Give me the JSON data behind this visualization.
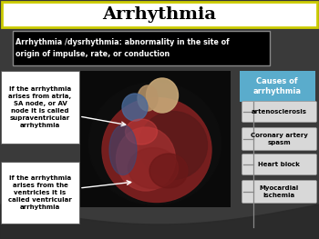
{
  "title": "Arrhythmia",
  "title_bg": "#FFFFFF",
  "title_fontsize": 14,
  "bg_color": "#3a3a3a",
  "definition_text": "Arrhythmia /dysrhythmia: abnormality in the site of\norigin of impulse, rate, or conduction",
  "definition_bg": "#000000",
  "definition_text_color": "#FFFFFF",
  "causes_header": "Causes of\narrhythmia",
  "causes_header_bg": "#5aaccc",
  "causes_header_text_color": "#FFFFFF",
  "causes": [
    "artenosclerosis",
    "Coronary artery\nspasm",
    "Heart block",
    "Myocardial\nischemia"
  ],
  "cause_box_bg": "#d8d8d8",
  "cause_box_text_color": "#000000",
  "left_text_top": "If the arrhythmia\narises from atria,\nSA node, or AV\nnode it is called\nsupraventricular\narrhythmia",
  "left_text_bottom": "If the arrhythmia\narises from the\nventricles it is\ncalled ventricular\narrhythmia",
  "left_text_bg": "#FFFFFF",
  "left_text_color": "#000000",
  "title_border_color": "#cccc00",
  "def_border_color": "#888888"
}
